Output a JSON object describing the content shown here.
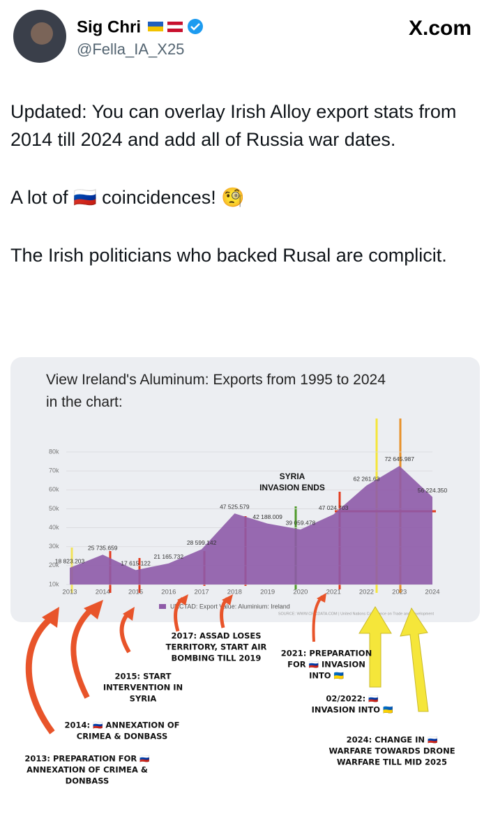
{
  "header": {
    "name": "Sig Chri",
    "handle": "@Fella_IA_X25",
    "brand": "X.com"
  },
  "post": {
    "paragraphs": [
      "Updated: You can overlay Irish Alloy export stats from 2014 till 2024 and add all of Russia war dates.",
      "A lot of 🇷🇺 coincidences! 🧐",
      "The Irish politicians who backed Rusal are complicit."
    ]
  },
  "chart_data": {
    "type": "area",
    "title": "View Ireland's Aluminum: Exports from 1995 to 2024 in the chart:",
    "x": [
      2013,
      2014,
      2015,
      2016,
      2017,
      2018,
      2019,
      2020,
      2021,
      2022,
      2023,
      2024
    ],
    "series": [
      {
        "name": "UNCTAD: Export Value: Aluminium: Ireland",
        "color": "#8e5aa8",
        "values": [
          18823.203,
          25735.659,
          17615.122,
          21165.732,
          28599.142,
          47525.579,
          42188.009,
          39059.478,
          47024.703,
          62261.63,
          72645.987,
          56224.35
        ],
        "value_labels": [
          "18 823.203",
          "25 735.659",
          "17 615.122",
          "21 165.732",
          "28 599.142",
          "47 525.579",
          "42 188.009",
          "39 059.478",
          "47 024.703",
          "62 261.63",
          "72 645.987",
          "56 224.350"
        ]
      }
    ],
    "xlim": [
      2013,
      2024
    ],
    "xticks": [
      2013,
      2014,
      2015,
      2016,
      2017,
      2018,
      2019,
      2020,
      2021,
      2022,
      2023,
      2024
    ],
    "ylim": [
      10000,
      80000
    ],
    "yticks": [
      {
        "value": 10000,
        "label": "10k"
      },
      {
        "value": 20000,
        "label": "20k"
      },
      {
        "value": 30000,
        "label": "30k"
      },
      {
        "value": 40000,
        "label": "40k"
      },
      {
        "value": 50000,
        "label": "50k"
      },
      {
        "value": 60000,
        "label": "60k"
      },
      {
        "value": 70000,
        "label": "70k"
      },
      {
        "value": 80000,
        "label": "80k"
      }
    ],
    "chart_annotation": [
      "SYRIA",
      "INVASION ENDS"
    ],
    "source": "SOURCE: WWW.CEICDATA.COM | United Nations Conference on Trade and Development"
  },
  "annotations": [
    [
      "2013: PREPARATION FOR 🇷🇺",
      "ANNEXATION OF CRIMEA &",
      "DONBASS"
    ],
    [
      "2014: 🇷🇺 ANNEXATION OF",
      "CRIMEA & DONBASS"
    ],
    [
      "2015: START",
      "INTERVENTION IN",
      "SYRIA"
    ],
    [
      "2017: ASSAD LOSES",
      "TERRITORY, START AIR",
      "BOMBING TILL 2019"
    ],
    [
      "2021: PREPARATION",
      "FOR 🇷🇺 INVASION",
      "INTO 🇺🇦"
    ],
    [
      "02/2022: 🇷🇺",
      "INVASION INTO 🇺🇦"
    ],
    [
      "2024: CHANGE IN 🇷🇺",
      "WARFARE TOWARDS DRONE",
      "WARFARE TILL MID 2025"
    ]
  ]
}
